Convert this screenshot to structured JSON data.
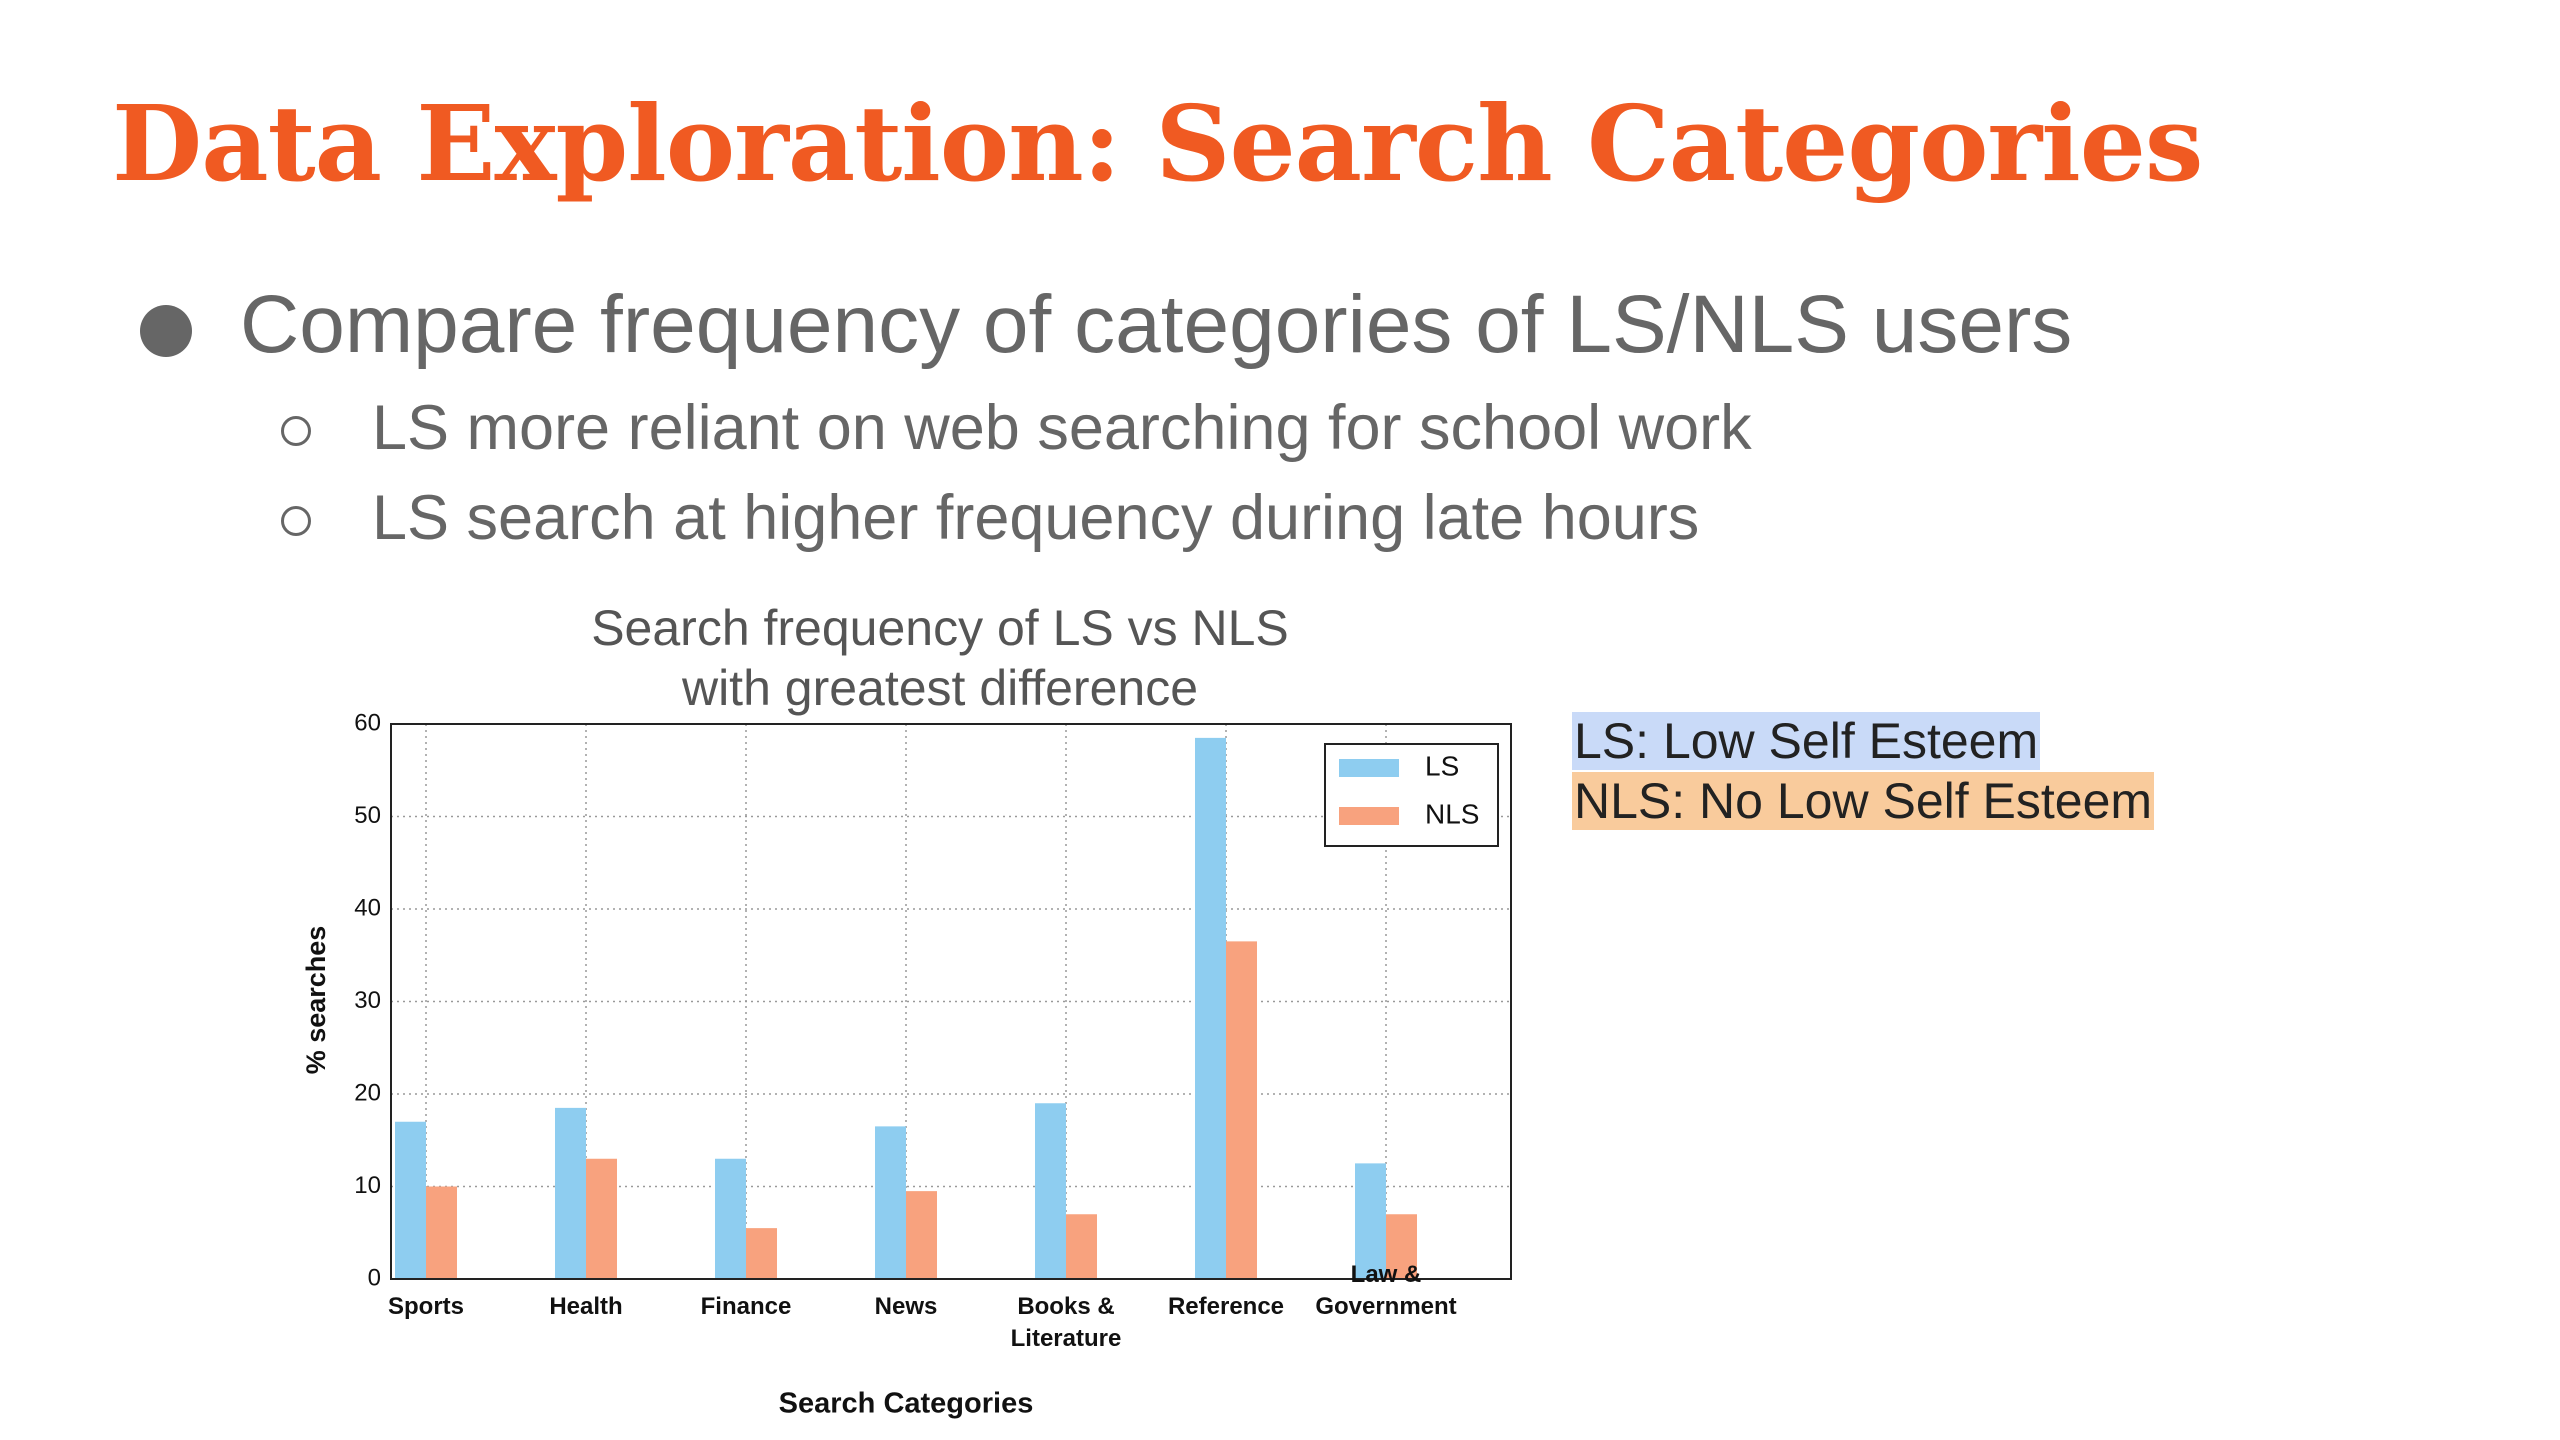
{
  "slide": {
    "title": "Data Exploration: Search Categories",
    "bullet": "Compare frequency of categories of LS/NLS users",
    "sub_bullets": [
      "LS more reliant on web searching for school work",
      "LS search at higher frequency during late hours"
    ],
    "notes": [
      {
        "text": "LS: Low Self Esteem",
        "color": "#c9daf8"
      },
      {
        "text": "NLS: No Low Self Esteem",
        "color": "#f9cb9c"
      }
    ]
  },
  "chart_data": {
    "type": "bar",
    "title": "Search frequency of LS vs NLS\nwith greatest difference",
    "x_label": "Search Categories",
    "y_label": "% searches",
    "categories": [
      "Sports",
      "Health",
      "Finance",
      "News",
      "Books &\nLiterature",
      "Reference",
      "Law &\nGovernment"
    ],
    "series": [
      {
        "name": "LS",
        "color": "#8ecdf0",
        "values": [
          17,
          18.5,
          13,
          16.5,
          19,
          58.5,
          12.5
        ]
      },
      {
        "name": "NLS",
        "color": "#f8a27e",
        "values": [
          10,
          13,
          5.5,
          9.5,
          7,
          36.5,
          7
        ]
      }
    ],
    "ylim": [
      0,
      60
    ],
    "yticks": [
      0,
      10,
      20,
      30,
      40,
      50,
      60
    ],
    "grid": true,
    "legend": "upper right"
  }
}
